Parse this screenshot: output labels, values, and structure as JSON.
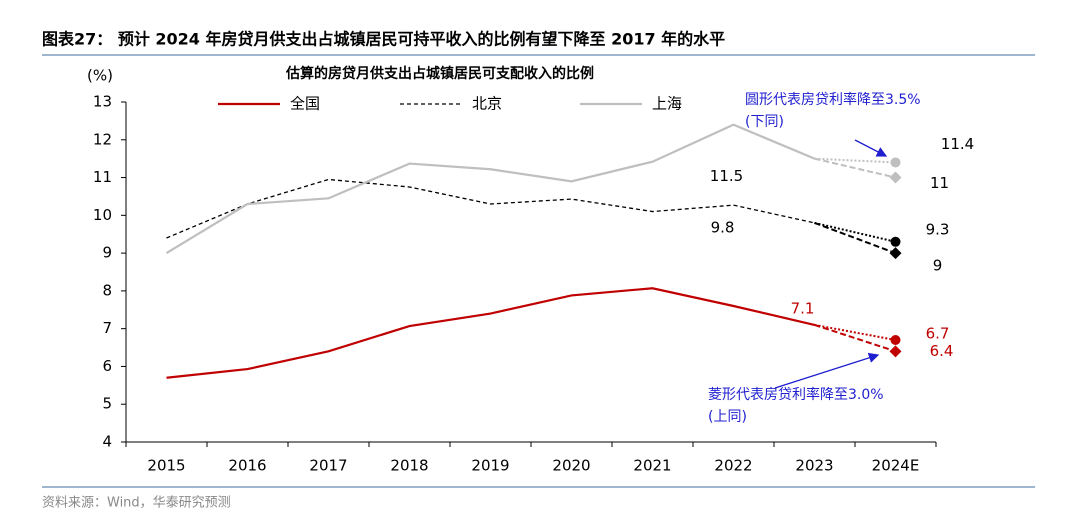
{
  "chart_data": {
    "type": "line",
    "title": "图表27： 预计 2024 年房贷月供支出占城镇居民可持平收入的比例有望下降至 2017 年的水平",
    "subtitle": "估算的房贷月供支出占城镇居民可支配收入的比例",
    "y_label": "(%)",
    "categories": [
      "2015",
      "2016",
      "2017",
      "2018",
      "2019",
      "2020",
      "2021",
      "2022",
      "2023",
      "2024E"
    ],
    "series": [
      {
        "name": "全国",
        "color": "#c00000",
        "dash": "solid",
        "values": [
          5.7,
          5.93,
          6.4,
          7.07,
          7.4,
          7.88,
          8.07,
          7.6,
          7.1,
          null
        ],
        "circle_value": 6.7,
        "diamond_value": 6.4
      },
      {
        "name": "北京",
        "color": "#000000",
        "dash": "dashed",
        "values": [
          9.4,
          10.3,
          10.95,
          10.75,
          10.3,
          10.43,
          10.1,
          10.27,
          9.8,
          null
        ],
        "circle_value": 9.3,
        "diamond_value": 9.0
      },
      {
        "name": "上海",
        "color": "#bfbfbf",
        "dash": "solid",
        "values": [
          9.0,
          10.3,
          10.45,
          11.37,
          11.22,
          10.9,
          11.42,
          12.4,
          11.5,
          null
        ],
        "circle_value": 11.4,
        "diamond_value": 11.0
      }
    ],
    "ylim": [
      4,
      13
    ],
    "yticks": [
      4,
      5,
      6,
      7,
      8,
      9,
      10,
      11,
      12,
      13
    ],
    "annotations": [
      "圆形代表房贷利率降至3.5%",
      "(下同)",
      "菱形代表房贷利率降至3.0%",
      "(上同)"
    ],
    "source": "资料来源：Wind，华泰研究预测"
  }
}
